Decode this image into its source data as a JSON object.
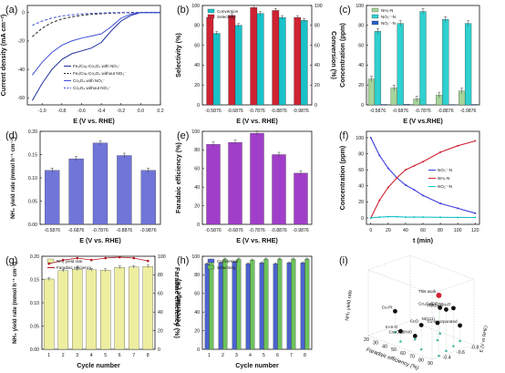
{
  "palette": {
    "blue": "#3b3bdd",
    "cyan": "#19c2c8",
    "red": "#cf2233",
    "green_light": "#a6d49a",
    "cyan_bar": "#2fd0cf",
    "blue_bar": "#2a5fc9",
    "purple": "#a13ec9",
    "slate": "#7076d8",
    "yellow": "#eeeea0",
    "green_bar": "#6cc35b",
    "darkred": "#b4151f"
  },
  "panel_letters": [
    "(a)",
    "(b)",
    "(c)",
    "(d)",
    "(e)",
    "(f)",
    "(g)",
    "(h)",
    "(i)"
  ],
  "potentials": [
    "-0.5876",
    "-0.6876",
    "-0.7876",
    "-0.8876",
    "-0.9876"
  ],
  "chart_data": [
    {
      "id": "a",
      "type": "line",
      "xlabel": "E (V vs. RHE)",
      "ylabel": "Current density (mA cm⁻²)",
      "xlim": [
        -1.15,
        0.2
      ],
      "ylim": [
        -65,
        5
      ],
      "xticks": [
        "-1.0",
        "-0.8",
        "-0.6",
        "-0.4",
        "-0.2",
        "0.0",
        "0.2"
      ],
      "yticks": [
        "-60",
        "-40",
        "-20",
        "0"
      ],
      "series": [
        {
          "name": "Feₓ/Cuₓ-Co₃O₄ with NO₃⁻",
          "dash": "solid",
          "color": "#1f2f9e",
          "x": [
            -1.1,
            -1.0,
            -0.9,
            -0.8,
            -0.7,
            -0.6,
            -0.5,
            -0.4,
            -0.3,
            -0.2,
            -0.1,
            0.0,
            0.1,
            0.2
          ],
          "y": [
            -62,
            -50,
            -40,
            -33,
            -29,
            -27,
            -25,
            -21,
            -13,
            -6,
            -2,
            0,
            0,
            0
          ]
        },
        {
          "name": "Feₓ/Cuₓ-Co₃O₄ without NO₃⁻",
          "dash": "dash",
          "color": "#222222",
          "x": [
            -1.1,
            -1.0,
            -0.9,
            -0.8,
            -0.7,
            -0.6,
            -0.5,
            -0.4,
            -0.3,
            -0.2,
            -0.1,
            0.0,
            0.1,
            0.2
          ],
          "y": [
            -17,
            -11,
            -7,
            -4.5,
            -3,
            -2,
            -1.2,
            -0.8,
            -0.4,
            -0.2,
            0,
            0,
            0,
            0
          ]
        },
        {
          "name": "Co₃O₄ with NO₃⁻",
          "dash": "solid",
          "color": "#3e4ed8",
          "x": [
            -1.1,
            -1.0,
            -0.9,
            -0.8,
            -0.7,
            -0.6,
            -0.5,
            -0.4,
            -0.3,
            -0.2,
            -0.1,
            0.0,
            0.1,
            0.2
          ],
          "y": [
            -44,
            -35,
            -28,
            -23,
            -20,
            -18,
            -16.5,
            -15,
            -10,
            -4,
            -1,
            0,
            0,
            0
          ]
        },
        {
          "name": "Co₃O₄ without NO₃⁻",
          "dash": "dash",
          "color": "#3e4ed8",
          "x": [
            -1.1,
            -1.0,
            -0.9,
            -0.8,
            -0.7,
            -0.6,
            -0.5,
            -0.4,
            -0.3,
            -0.2,
            -0.1,
            0.0,
            0.1,
            0.2
          ],
          "y": [
            -9,
            -6,
            -3.8,
            -2.4,
            -1.6,
            -1,
            -0.6,
            -0.3,
            -0.1,
            0,
            0,
            0,
            0,
            0
          ]
        }
      ],
      "legend": [
        "Feₓ/Cuₓ-Co₃O₄ with NO₃⁻",
        "Feₓ/Cuₓ-Co₃O₄ without NO₃⁻",
        "Co₃O₄ with NO₃⁻",
        "Co₃O₄ without NO₃⁻"
      ]
    },
    {
      "id": "b",
      "type": "bar",
      "xlabel": "E (V vs. RHE)",
      "ylabel": "Selectivity (%)",
      "ylabel_right": "Conversion (%)",
      "ylim": [
        0,
        100
      ],
      "yticks": [
        "0",
        "20",
        "40",
        "60",
        "80",
        "100"
      ],
      "categories": [
        "-0.5876",
        "-0.6876",
        "-0.7876",
        "-0.8876",
        "-0.9876"
      ],
      "series": [
        {
          "name": "Selectivity",
          "color": "#cf2233",
          "values": [
            88,
            90,
            98,
            95,
            88
          ]
        },
        {
          "name": "Conversion",
          "color": "#19c2c8",
          "values": [
            72,
            80,
            92,
            88,
            85
          ]
        }
      ],
      "legend": [
        "Conversion",
        "Selectivity"
      ]
    },
    {
      "id": "c",
      "type": "bar",
      "stacked": true,
      "xlabel": "E (V vs.RHE)",
      "ylabel": "Concentration (ppm)",
      "ylim": [
        0,
        100
      ],
      "yticks": [
        "0",
        "20",
        "40",
        "60",
        "80",
        "100"
      ],
      "categories": [
        "-0.5876",
        "-0.6876",
        "-0.7876",
        "-0.8876",
        "-0.9876"
      ],
      "series": [
        {
          "name": "NH₃-N",
          "color": "#a6d49a",
          "values": [
            26,
            17,
            6,
            10,
            14
          ]
        },
        {
          "name": "NO₃⁻-N",
          "color": "#2fd0cf",
          "values": [
            74,
            82,
            94,
            86,
            82
          ]
        },
        {
          "name": "NO₂⁻-N",
          "color": "#2a5fc9",
          "values": [
            0.5,
            0.6,
            0.3,
            0.4,
            0.5
          ]
        }
      ],
      "legend": [
        "NH₃-N",
        "NO₃⁻-N",
        "NO₂⁻-N"
      ]
    },
    {
      "id": "d",
      "type": "bar",
      "xlabel": "E (V vs. RHE)",
      "ylabel": "NH₃ yield rate (mmol h⁻¹ cm⁻²)",
      "ylim": [
        0,
        0.2
      ],
      "yticks": [
        "0.00",
        "0.05",
        "0.10",
        "0.15",
        "0.20"
      ],
      "categories": [
        "-0.5876",
        "-0.6876",
        "-0.7876",
        "-0.8876",
        "-0.9876"
      ],
      "series": [
        {
          "name": "",
          "color": "#7076d8",
          "values": [
            0.116,
            0.141,
            0.175,
            0.148,
            0.116
          ]
        }
      ]
    },
    {
      "id": "e",
      "type": "bar",
      "xlabel": "E (V vs. RHE)",
      "ylabel": "Faradaic efficiency (%)",
      "ylim": [
        0,
        100
      ],
      "yticks": [
        "0",
        "20",
        "40",
        "60",
        "80",
        "100"
      ],
      "categories": [
        "-0.5876",
        "-0.6876",
        "-0.7876",
        "-0.8876",
        "-0.9876"
      ],
      "series": [
        {
          "name": "",
          "color": "#a13ec9",
          "values": [
            86,
            88,
            98,
            75,
            55
          ]
        }
      ]
    },
    {
      "id": "f",
      "type": "line",
      "xlabel": "t (min)",
      "ylabel": "Concentration (ppm)",
      "xlim": [
        -5,
        125
      ],
      "ylim": [
        -8,
        108
      ],
      "xticks": [
        "0",
        "20",
        "40",
        "60",
        "80",
        "100",
        "120"
      ],
      "yticks": [
        "0",
        "20",
        "40",
        "60",
        "80",
        "100"
      ],
      "series": [
        {
          "name": "NO₃⁻-N",
          "color": "#3b3bdd",
          "x": [
            0,
            10,
            20,
            30,
            40,
            50,
            60,
            80,
            100,
            120
          ],
          "y": [
            100,
            78,
            62,
            50,
            41,
            35,
            28,
            18,
            12,
            6
          ]
        },
        {
          "name": "NH₃-N",
          "color": "#cf2233",
          "x": [
            0,
            10,
            20,
            30,
            40,
            50,
            60,
            80,
            100,
            120
          ],
          "y": [
            0,
            22,
            38,
            50,
            60,
            65,
            70,
            82,
            90,
            96
          ]
        },
        {
          "name": "NO₂⁻-N",
          "color": "#19c2c8",
          "x": [
            0,
            10,
            20,
            30,
            40,
            50,
            60,
            80,
            100,
            120
          ],
          "y": [
            0,
            1,
            1.5,
            1.5,
            1,
            1,
            1,
            0.8,
            0.6,
            0.5
          ]
        }
      ],
      "legend": [
        "NO₃⁻-N",
        "NH₃-N",
        "NO₂⁻-N"
      ]
    },
    {
      "id": "g",
      "type": "bar",
      "xlabel": "Cycle number",
      "ylabel": "NH₃ yield rate (mmol h⁻¹ cm⁻²)",
      "ylabel_right": "Faradaic efficiency (%)",
      "ylim": [
        0,
        0.2
      ],
      "yticks": [
        "0.00",
        "0.05",
        "0.10",
        "0.15",
        "0.20"
      ],
      "ylim_right": [
        0,
        100
      ],
      "yticks_right": [
        "0",
        "20",
        "40",
        "60",
        "80",
        "100"
      ],
      "categories": [
        "1",
        "2",
        "3",
        "4",
        "5",
        "6",
        "7",
        "8"
      ],
      "series": [
        {
          "name": "NH₃ yield rate",
          "color": "#eeeea0",
          "values": [
            0.151,
            0.169,
            0.172,
            0.171,
            0.17,
            0.176,
            0.177,
            0.178
          ]
        },
        {
          "name": "Faradaic efficiency",
          "color": "#b4151f",
          "right_axis": true,
          "values": [
            92,
            96,
            98,
            96,
            98,
            99,
            98,
            95
          ]
        }
      ],
      "legend": [
        "NH₃ yield rate",
        "Faradaic efficiency"
      ]
    },
    {
      "id": "h",
      "type": "bar",
      "xlabel": "Cycle number",
      "ylabel": "Percentage (%)",
      "ylim": [
        0,
        100
      ],
      "yticks": [
        "0",
        "20",
        "40",
        "60",
        "80",
        "100"
      ],
      "categories": [
        "1",
        "2",
        "3",
        "4",
        "5",
        "6",
        "7",
        "8"
      ],
      "series": [
        {
          "name": "Conversion",
          "color": "#4a63cf",
          "values": [
            92,
            93,
            94,
            92,
            93,
            92,
            93,
            93
          ]
        },
        {
          "name": "Selectivity",
          "color": "#6cc35b",
          "values": [
            96,
            97,
            97,
            96,
            97,
            97,
            97,
            97
          ]
        }
      ],
      "legend": [
        "Conversion",
        "Selectivity"
      ]
    },
    {
      "id": "i",
      "type": "scatter",
      "xlabel": "Faradaic efficiency (%)",
      "ylabel": "NH₃ yield rate",
      "zlabel": "E (V vs RHE)",
      "xticks": [
        "20",
        "30",
        "40",
        "50",
        "60",
        "70",
        "80",
        "90"
      ],
      "zticks": [
        "-0.4",
        "-0.6",
        "-0.8"
      ],
      "points": [
        {
          "label": "This work",
          "x": 98,
          "y": 0.175,
          "color": "#cf2233"
        },
        {
          "label": "Pd/Cu₂O",
          "x": 94,
          "y": 0.12,
          "color": "#111111"
        },
        {
          "label": "Cu₂O/Cu₈O",
          "x": 90,
          "y": 0.11,
          "color": "#111111"
        },
        {
          "label": "Co₃O₄/CF",
          "x": 60,
          "y": 0.075,
          "color": "#111111"
        },
        {
          "label": "CuO",
          "x": 76,
          "y": 0.07,
          "color": "#111111"
        },
        {
          "label": "Cu-Pt",
          "x": 30,
          "y": 0.06,
          "color": "#111111"
        },
        {
          "label": "Ni(111)",
          "x": 70,
          "y": 0.05,
          "color": "#111111"
        },
        {
          "label": "Cu-incorporated",
          "x": 85,
          "y": 0.045,
          "color": "#111111"
        },
        {
          "label": "In-S-G",
          "x": 50,
          "y": 0.03,
          "color": "#111111"
        },
        {
          "label": "Co₃O₄@NiO",
          "x": 55,
          "y": 0.01,
          "color": "#111111"
        }
      ]
    }
  ]
}
